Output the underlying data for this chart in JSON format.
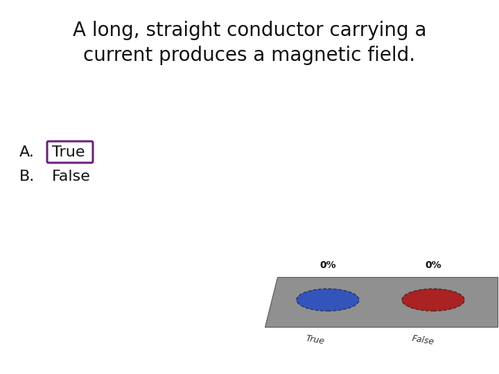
{
  "title_line1": "A long, straight conductor carrying a",
  "title_line2": "current produces a magnetic field.",
  "option_a_prefix": "A.",
  "option_a_text": "True",
  "option_b_prefix": "B.",
  "option_b_text": "False",
  "bg_color": "#ffffff",
  "platform_color": "#909090",
  "true_circle_color": "#3355bb",
  "false_circle_color": "#aa2222",
  "true_pct": "0%",
  "false_pct": "0%",
  "true_label": "True",
  "false_label": "False",
  "title_fontsize": 20,
  "option_fontsize": 16,
  "box_edge_color": "#6B2080",
  "pct_fontsize": 10,
  "label_fontsize": 9
}
